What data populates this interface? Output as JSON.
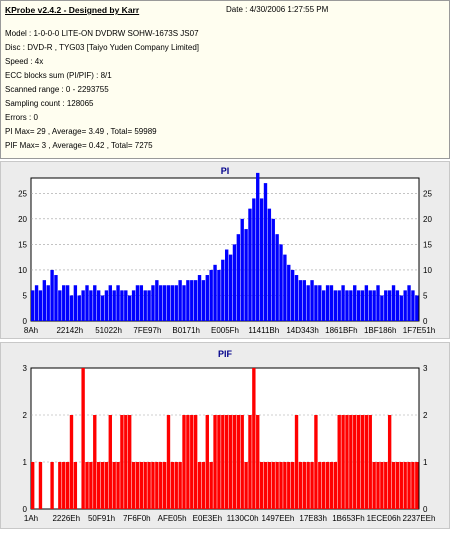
{
  "header": {
    "title": "KProbe v2.4.2 - Designed by Karr",
    "date": "Date : 4/30/2006 1:27:55 PM",
    "lines": [
      "Model : 1-0-0-0 LITE-ON DVDRW SOHW-1673S JS07",
      "Disc : DVD-R , TYG03 [Taiyo Yuden Company Limited]",
      "Speed : 4x",
      "ECC blocks sum (PI/PIF) : 8/1",
      "Scanned range : 0 - 2293755",
      "Sampling count : 128065",
      "Errors : 0",
      "PI Max= 29 , Average= 3.49 , Total= 59989",
      "PIF Max= 3 , Average= 0.42 , Total= 7275"
    ]
  },
  "colors": {
    "pi": "#0000ff",
    "pif": "#ff0000",
    "plot_bg": "#ffffff",
    "grid": "#a0a0a0"
  },
  "chart_data": [
    {
      "type": "bar",
      "title": "PI",
      "x_tick_labels": [
        "8Ah",
        "22142h",
        "51022h",
        "7FE97h",
        "B0171h",
        "E005Fh",
        "11411Bh",
        "14D343h",
        "1861BFh",
        "1BF186h",
        "1F7E51h"
      ],
      "ylim": [
        0,
        28
      ],
      "y_ticks": [
        0,
        5,
        10,
        15,
        20,
        25
      ],
      "grid": true,
      "series": [
        {
          "values": [
            6,
            7,
            6,
            8,
            7,
            10,
            9,
            6,
            7,
            7,
            5,
            7,
            5,
            6,
            7,
            6,
            7,
            6,
            5,
            6,
            7,
            6,
            7,
            6,
            6,
            5,
            6,
            7,
            7,
            6,
            6,
            7,
            8,
            7,
            7,
            7,
            7,
            7,
            8,
            7,
            8,
            8,
            8,
            9,
            8,
            9,
            10,
            11,
            10,
            12,
            14,
            13,
            15,
            17,
            20,
            18,
            22,
            24,
            29,
            24,
            27,
            22,
            20,
            17,
            15,
            13,
            11,
            10,
            9,
            8,
            8,
            7,
            8,
            7,
            7,
            6,
            7,
            7,
            6,
            6,
            7,
            6,
            6,
            7,
            6,
            6,
            7,
            6,
            6,
            7,
            5,
            6,
            6,
            7,
            6,
            5,
            6,
            7,
            6,
            5
          ]
        }
      ]
    },
    {
      "type": "bar",
      "title": "PIF",
      "x_tick_labels": [
        "1Ah",
        "2226Eh",
        "50F91h",
        "7F6F0h",
        "AFE05h",
        "E0E3Eh",
        "1130C0h",
        "1497EEh",
        "17E83h",
        "1B653Fh",
        "1ECE06h",
        "2237EEh"
      ],
      "ylim": [
        0,
        3
      ],
      "y_ticks": [
        0,
        1,
        2,
        3
      ],
      "grid": true,
      "series": [
        {
          "values": [
            1,
            0,
            1,
            0,
            0,
            1,
            0,
            1,
            1,
            1,
            2,
            1,
            0,
            3,
            1,
            1,
            2,
            1,
            1,
            1,
            2,
            1,
            1,
            2,
            2,
            2,
            1,
            1,
            1,
            1,
            1,
            1,
            1,
            1,
            1,
            2,
            1,
            1,
            1,
            2,
            2,
            2,
            2,
            1,
            1,
            2,
            1,
            2,
            2,
            2,
            2,
            2,
            2,
            2,
            2,
            1,
            2,
            3,
            2,
            1,
            1,
            1,
            1,
            1,
            1,
            1,
            1,
            1,
            2,
            1,
            1,
            1,
            1,
            2,
            1,
            1,
            1,
            1,
            1,
            2,
            2,
            2,
            2,
            2,
            2,
            2,
            2,
            2,
            1,
            1,
            1,
            1,
            2,
            1,
            1,
            1,
            1,
            1,
            1,
            1
          ]
        }
      ]
    }
  ]
}
